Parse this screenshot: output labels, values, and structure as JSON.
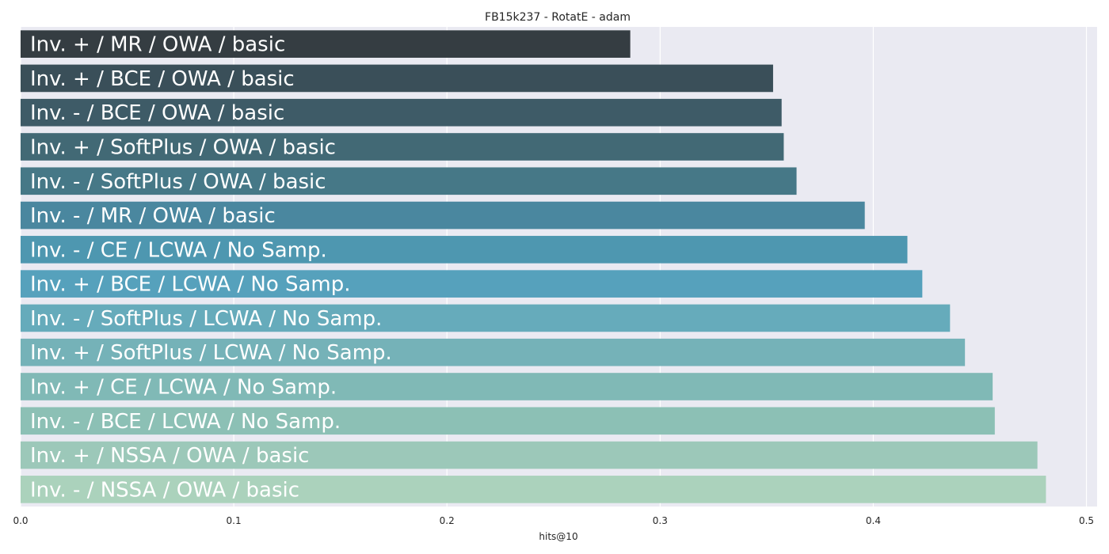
{
  "chart_data": {
    "type": "bar",
    "orientation": "horizontal",
    "title": "FB15k237 - RotatE - adam",
    "xlabel": "hits@10",
    "ylabel": "",
    "xlim": [
      0.0,
      0.505
    ],
    "xticks": [
      "0.0",
      "0.1",
      "0.2",
      "0.3",
      "0.4",
      "0.5"
    ],
    "grid": true,
    "categories": [
      "Inv. + / MR / OWA / basic",
      "Inv. + / BCE / OWA / basic",
      "Inv. - / BCE / OWA / basic",
      "Inv. + / SoftPlus / OWA / basic",
      "Inv. - / SoftPlus / OWA / basic",
      "Inv. - / MR / OWA / basic",
      "Inv. - / CE / LCWA / No Samp.",
      "Inv. + / BCE / LCWA / No Samp.",
      "Inv. - / SoftPlus / LCWA / No Samp.",
      "Inv. + / SoftPlus / LCWA / No Samp.",
      "Inv. + / CE / LCWA / No Samp.",
      "Inv. - / BCE / LCWA / No Samp.",
      "Inv. + / NSSA / OWA / basic",
      "Inv. - / NSSA / OWA / basic"
    ],
    "values": [
      0.286,
      0.353,
      0.357,
      0.358,
      0.364,
      0.396,
      0.416,
      0.423,
      0.436,
      0.443,
      0.456,
      0.457,
      0.477,
      0.481
    ],
    "colors": [
      "#353d42",
      "#3a4f59",
      "#3e5b67",
      "#426975",
      "#467887",
      "#4a879f",
      "#4e97b0",
      "#56a1bc",
      "#66abbb",
      "#75b2b8",
      "#80b9b6",
      "#8cc0b5",
      "#9cc8b9",
      "#abd2bc"
    ],
    "background": "#eaeaf2"
  }
}
